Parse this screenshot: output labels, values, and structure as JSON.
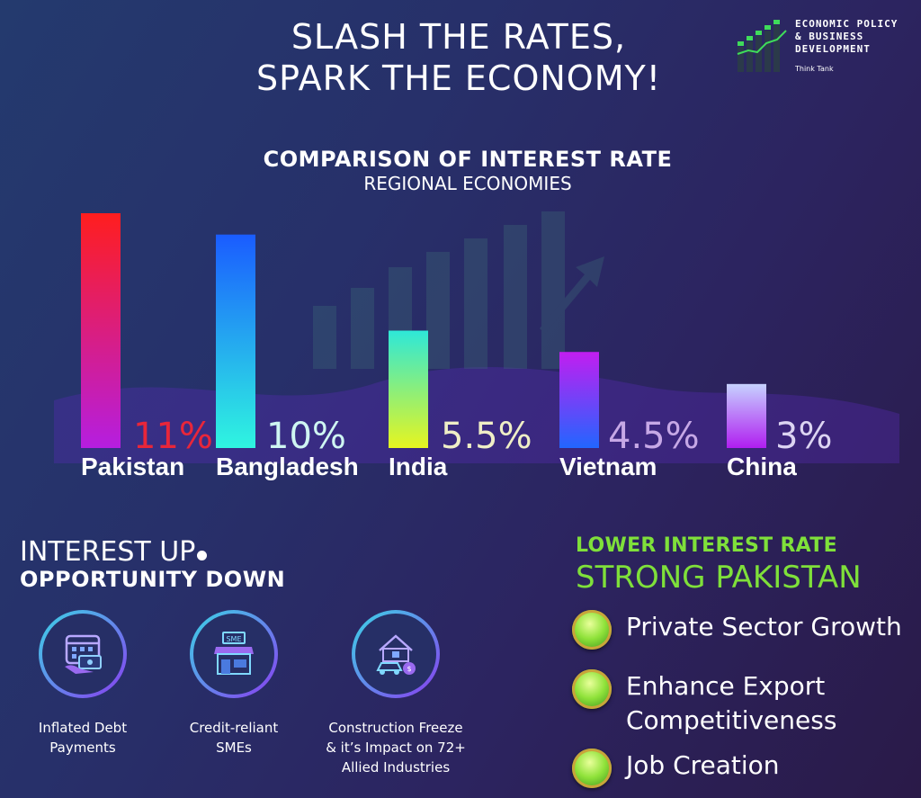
{
  "header": {
    "headline_line1": "SLASH THE RATES,",
    "headline_line2": "SPARK THE ECONOMY!"
  },
  "logo": {
    "name": "ECONOMIC POLICY\n& BUSINESS\nDEVELOPMENT",
    "tagline": "Think Tank",
    "icon": "growth-bars-logo"
  },
  "chart_data": {
    "type": "bar",
    "title": "COMPARISON OF INTEREST RATE",
    "subtitle": "REGIONAL ECONOMIES",
    "categories": [
      "Pakistan",
      "Bangladesh",
      "India",
      "Vietnam",
      "China"
    ],
    "values": [
      11,
      10,
      5.5,
      4.5,
      3
    ],
    "value_labels": [
      "11%",
      "10%",
      "5.5%",
      "4.5%",
      "3%"
    ],
    "unit": "%",
    "ylim": [
      0,
      11
    ],
    "grid": false,
    "legend": "none",
    "colors": [
      [
        "#ff1e1e",
        "#b51ee0"
      ],
      [
        "#1a5cff",
        "#2ff5e0"
      ],
      [
        "#2ee8d8",
        "#e6f520"
      ],
      [
        "#c21ef0",
        "#2266ff"
      ],
      [
        "#c6d2ff",
        "#b01ef0"
      ]
    ],
    "label_colors": [
      "#e8263a",
      "#cff6f2",
      "#efeec6",
      "#c6a8e6",
      "#dcd4f2"
    ]
  },
  "impacts": {
    "title": "INTEREST UP",
    "subtitle": "OPPORTUNITY DOWN",
    "items": [
      {
        "icon": "calendar-money-icon",
        "label_line1": "Inflated Debt",
        "label_line2": "Payments",
        "label_line3": ""
      },
      {
        "icon": "sme-shop-icon",
        "label_line1": "Credit-reliant",
        "label_line2": "SMEs",
        "label_line3": ""
      },
      {
        "icon": "house-car-icon",
        "label_line1": "Construction Freeze",
        "label_line2": "& it’s Impact on 72+",
        "label_line3": "Allied Industries"
      }
    ],
    "icon_sign": "SME"
  },
  "benefits": {
    "title": "LOWER INTEREST RATE",
    "subtitle": "STRONG PAKISTAN",
    "items": [
      {
        "line1": "Private Sector Growth",
        "line2": ""
      },
      {
        "line1": "Enhance Export",
        "line2": "Competitiveness"
      },
      {
        "line1": "Job Creation",
        "line2": ""
      }
    ],
    "accent": "#7fe03a"
  }
}
